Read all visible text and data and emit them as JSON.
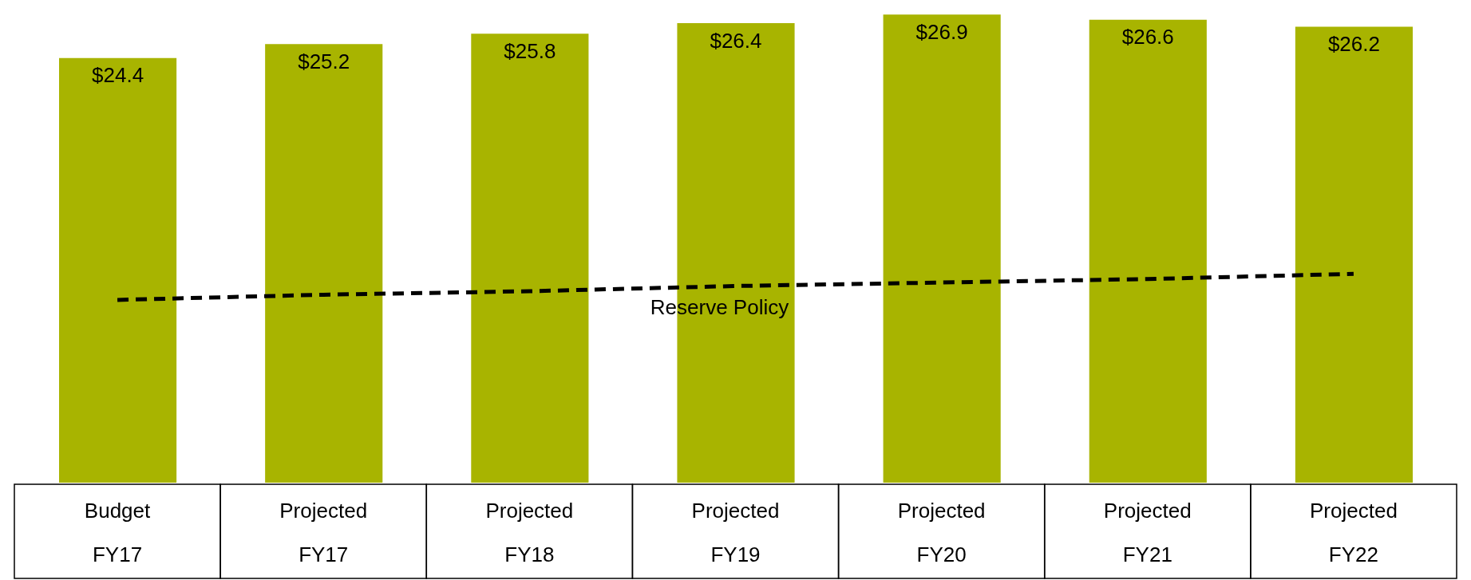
{
  "chart_data": {
    "type": "bar",
    "categories": [
      "Budget FY17",
      "Projected FY17",
      "Projected FY18",
      "Projected FY19",
      "Projected FY20",
      "Projected FY21",
      "Projected FY22"
    ],
    "ylim": [
      0,
      27
    ],
    "series": [
      {
        "color": "#a8b400",
        "values": [
          24.4,
          25.2,
          25.8,
          26.4,
          26.9,
          26.6,
          26.2
        ],
        "value_labels": [
          "$24.4",
          "$25.2",
          "$25.8",
          "$26.4",
          "$26.9",
          "$26.6",
          "$26.2"
        ]
      },
      {
        "type": "line",
        "name": "Reserve Policy",
        "color": "#000000",
        "line_style": "dashed",
        "marker": "none",
        "values": [
          10.5,
          10.8,
          11.0,
          11.3,
          11.5,
          11.7,
          12.0
        ]
      }
    ]
  }
}
